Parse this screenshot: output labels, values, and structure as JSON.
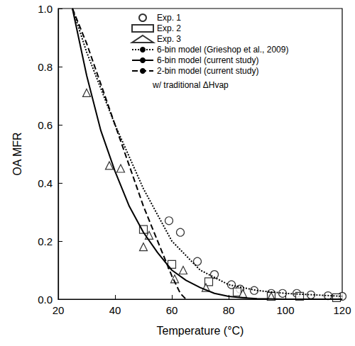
{
  "chart_data": {
    "type": "scatter",
    "x_label": "Temperature (°C)",
    "y_label": "OA MFR",
    "xlim": [
      20,
      120
    ],
    "xticks": [
      20,
      40,
      60,
      80,
      100,
      120
    ],
    "ylim": [
      0,
      1
    ],
    "yticks": [
      {
        "value": 0,
        "label": "0.0"
      },
      0.2,
      0.4,
      0.6,
      0.8,
      {
        "value": 1,
        "label": "1.0"
      }
    ],
    "grid": false,
    "legend": "top-right",
    "annotations": [
      "w/ traditional ΔHvap"
    ],
    "series": [
      {
        "name": "Exp. 1",
        "type": "scatter",
        "marker": "circle",
        "color": "#000000",
        "x": [
          59,
          63,
          69,
          75,
          81,
          84,
          89,
          95,
          99,
          104,
          109,
          115,
          120
        ],
        "values": [
          0.27,
          0.23,
          0.13,
          0.085,
          0.05,
          0.035,
          0.03,
          0.02,
          0.02,
          0.02,
          0.015,
          0.012,
          0.01
        ]
      },
      {
        "name": "Exp. 2",
        "type": "scatter",
        "marker": "square",
        "color": "#000000",
        "x": [
          50,
          60,
          73,
          83,
          95,
          105,
          118
        ],
        "values": [
          0.24,
          0.12,
          0.06,
          0.025,
          0.01,
          0.01,
          0.005
        ]
      },
      {
        "name": "Exp. 3",
        "type": "scatter",
        "marker": "triangle",
        "color": "#000000",
        "x": [
          30,
          38,
          42,
          50,
          52,
          61,
          64,
          72,
          85,
          95
        ],
        "values": [
          0.71,
          0.46,
          0.45,
          0.18,
          0.22,
          0.07,
          0.1,
          0.04,
          0.02,
          0.01
        ]
      },
      {
        "name": "6-bin model (Grieshop et al., 2009)",
        "type": "line",
        "line_style": "dotted",
        "color": "#000000",
        "x": [
          25,
          30,
          40,
          50,
          60,
          70,
          80,
          90,
          100,
          110,
          120
        ],
        "values": [
          1.0,
          0.85,
          0.6,
          0.38,
          0.2,
          0.1,
          0.05,
          0.03,
          0.02,
          0.015,
          0.01
        ]
      },
      {
        "name": "6-bin model (current study)",
        "type": "line",
        "line_style": "solid",
        "color": "#000000",
        "x": [
          25,
          30,
          35,
          40,
          45,
          50,
          55,
          60,
          65,
          70,
          75,
          80,
          85,
          90,
          100,
          120
        ],
        "values": [
          1.0,
          0.77,
          0.58,
          0.44,
          0.32,
          0.23,
          0.16,
          0.1,
          0.065,
          0.04,
          0.02,
          0.01,
          0.005,
          0.002,
          0.0,
          0.0
        ]
      },
      {
        "name": "2-bin model (current study)",
        "type": "line",
        "line_style": "dashed",
        "color": "#000000",
        "x": [
          25,
          30,
          35,
          40,
          45,
          50,
          55,
          60,
          63,
          65
        ],
        "values": [
          1.0,
          0.88,
          0.74,
          0.6,
          0.46,
          0.32,
          0.2,
          0.08,
          0.02,
          0.0
        ]
      }
    ]
  }
}
